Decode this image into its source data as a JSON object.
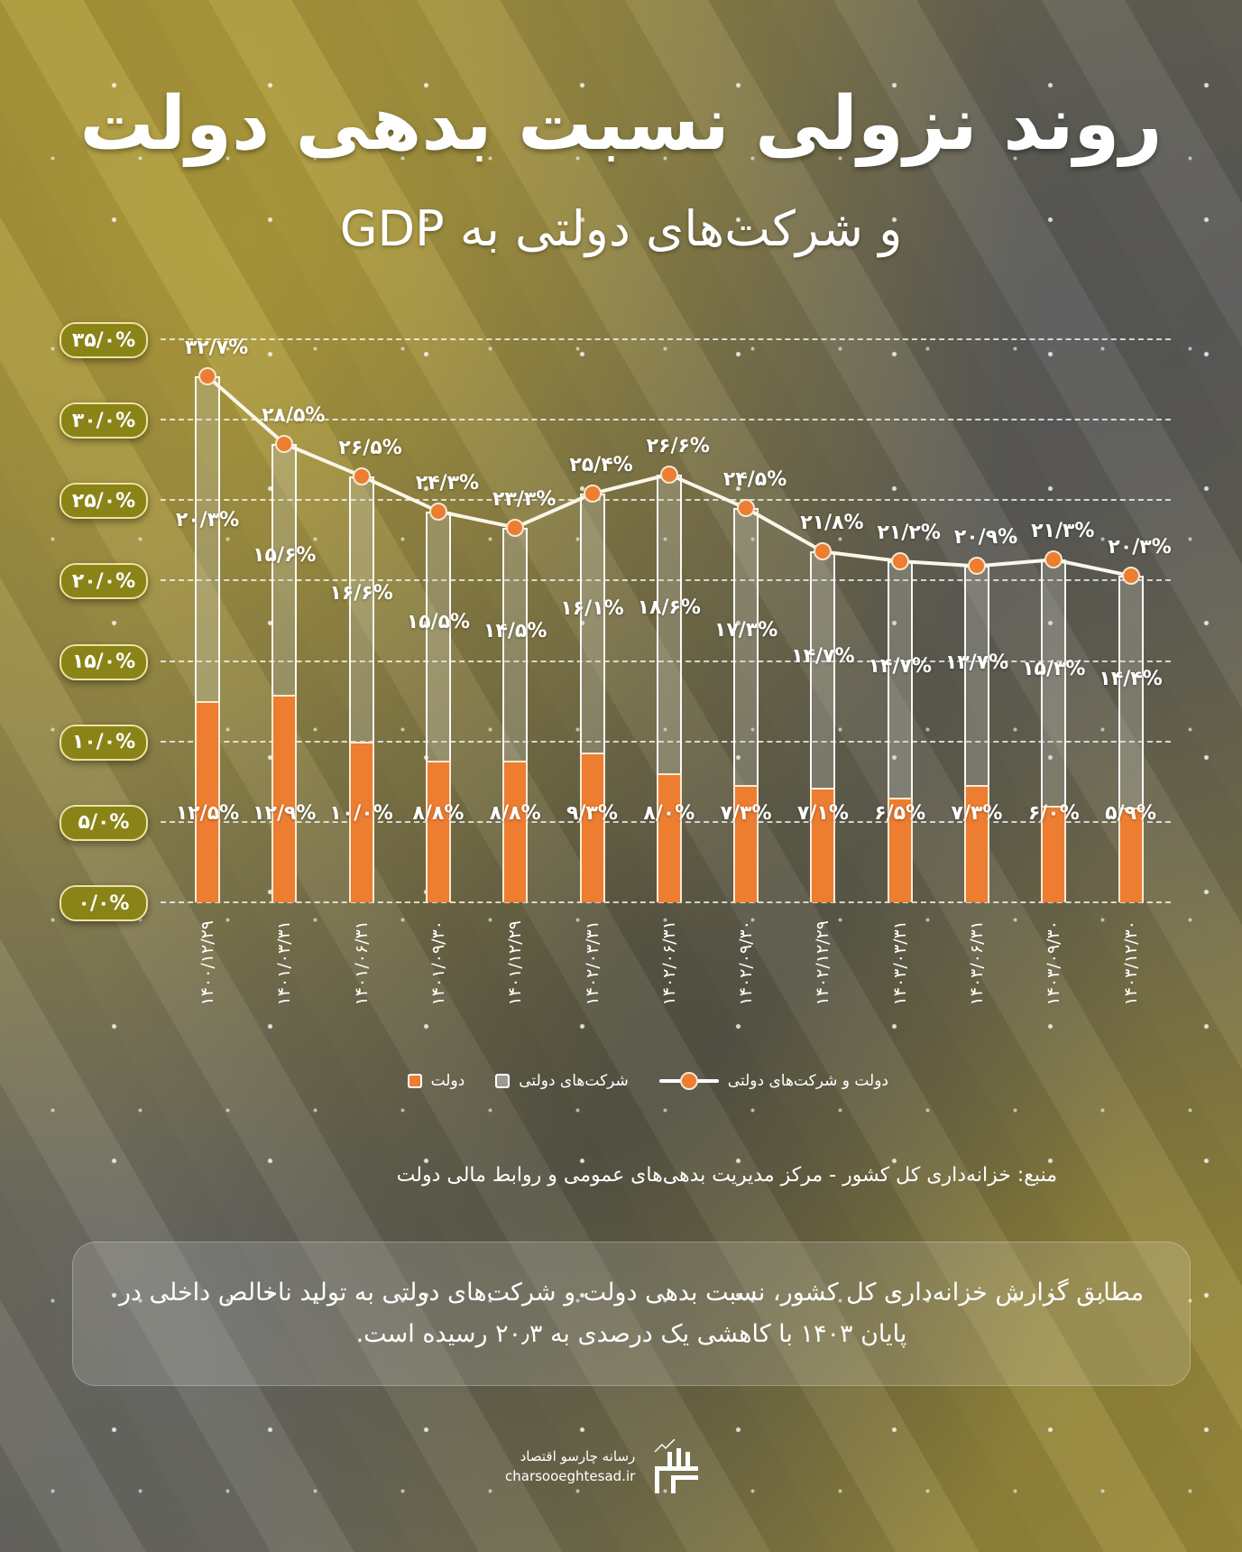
{
  "title": "روند نزولی نسبت بدهی دولت",
  "subtitle": "و شرکت‌های دولتی به GDP",
  "chart_data": {
    "type": "bar",
    "stacked": true,
    "title": "روند نزولی نسبت بدهی دولت و شرکت‌های دولتی به GDP",
    "xlabel": "",
    "ylabel": "",
    "ylim": [
      0,
      35
    ],
    "y_ticks": [
      "۰/۰%",
      "۵/۰%",
      "۱۰/۰%",
      "۱۵/۰%",
      "۲۰/۰%",
      "۲۵/۰%",
      "۳۰/۰%",
      "۳۵/۰%"
    ],
    "y_tick_values": [
      0,
      5,
      10,
      15,
      20,
      25,
      30,
      35
    ],
    "grid": true,
    "legend_position": "bottom",
    "categories": [
      "۱۴۰۰/۱۲/۲۹",
      "۱۴۰۱/۰۳/۳۱",
      "۱۴۰۱/۰۶/۳۱",
      "۱۴۰۱/۰۹/۳۰",
      "۱۴۰۱/۱۲/۲۹",
      "۱۴۰۲/۰۳/۳۱",
      "۱۴۰۲/۰۶/۳۱",
      "۱۴۰۲/۰۹/۳۰",
      "۱۴۰۲/۱۲/۲۹",
      "۱۴۰۳/۰۳/۳۱",
      "۱۴۰۳/۰۶/۳۱",
      "۱۴۰۳/۰۹/۳۰",
      "۱۴۰۳/۱۲/۳۰"
    ],
    "series": [
      {
        "name": "دولت",
        "type": "bar",
        "color": "#ec7d31",
        "values": [
          12.5,
          12.9,
          10.0,
          8.8,
          8.8,
          9.3,
          8.0,
          7.3,
          7.1,
          6.5,
          7.3,
          6.0,
          5.9
        ],
        "labels": [
          "۱۲/۵%",
          "۱۲/۹%",
          "۱۰/۰%",
          "۸/۸%",
          "۸/۸%",
          "۹/۳%",
          "۸/۰%",
          "۷/۳%",
          "۷/۱%",
          "۶/۵%",
          "۷/۳%",
          "۶/۰%",
          "۵/۹%"
        ]
      },
      {
        "name": "شرکت‌های دولتی",
        "type": "bar",
        "color": "#9a9a90",
        "values": [
          20.3,
          15.6,
          16.6,
          15.5,
          14.5,
          16.1,
          18.6,
          17.3,
          14.7,
          14.7,
          13.7,
          15.3,
          14.4
        ],
        "labels": [
          "۲۰/۳%",
          "۱۵/۶%",
          "۱۶/۶%",
          "۱۵/۵%",
          "۱۴/۵%",
          "۱۶/۱%",
          "۱۸/۶%",
          "۱۷/۳%",
          "۱۴/۷%",
          "۱۴/۷%",
          "۱۳/۷%",
          "۱۵/۳%",
          "۱۴/۴%"
        ]
      },
      {
        "name": "دولت و شرکت‌های دولتی",
        "type": "line",
        "color": "#ffffff",
        "marker_color": "#ec7d31",
        "values": [
          32.7,
          28.5,
          26.5,
          24.3,
          23.3,
          25.4,
          26.6,
          24.5,
          21.8,
          21.2,
          20.9,
          21.3,
          20.3
        ],
        "labels": [
          "۳۲/۷%",
          "۲۸/۵%",
          "۲۶/۵%",
          "۲۴/۳%",
          "۲۳/۳%",
          "۲۵/۴%",
          "۲۶/۶%",
          "۲۴/۵%",
          "۲۱/۸%",
          "۲۱/۲%",
          "۲۰/۹%",
          "۲۱/۳%",
          "۲۰/۳%"
        ]
      }
    ]
  },
  "legend": {
    "total": "دولت و شرکت‌های دولتی",
    "soe": "شرکت‌های دولتی",
    "gov": "دولت"
  },
  "source": "منبع: خزانه‌داری کل کشور - مرکز مدیریت بدهی‌های عمومی و روابط مالی دولت",
  "note": "مطابق گزارش خزانه‌داری کل کشور، نسبت بدهی دولت و شرکت‌های دولتی به تولید ناخالص داخلی در پایان ۱۴۰۳ با کاهشی یک درصدی به ۲۰٫۳ رسیده است.",
  "footer": {
    "brand_fa": "رسانه چارسو اقتصاد",
    "brand_url": "charsooeghtesad.ir",
    "logo_icon": "charsoo-logo-icon"
  },
  "colors": {
    "gov": "#ec7d31",
    "soe": "#9a9a90",
    "pill_bg": "#8a8418",
    "pill_border": "#efe3a0"
  }
}
